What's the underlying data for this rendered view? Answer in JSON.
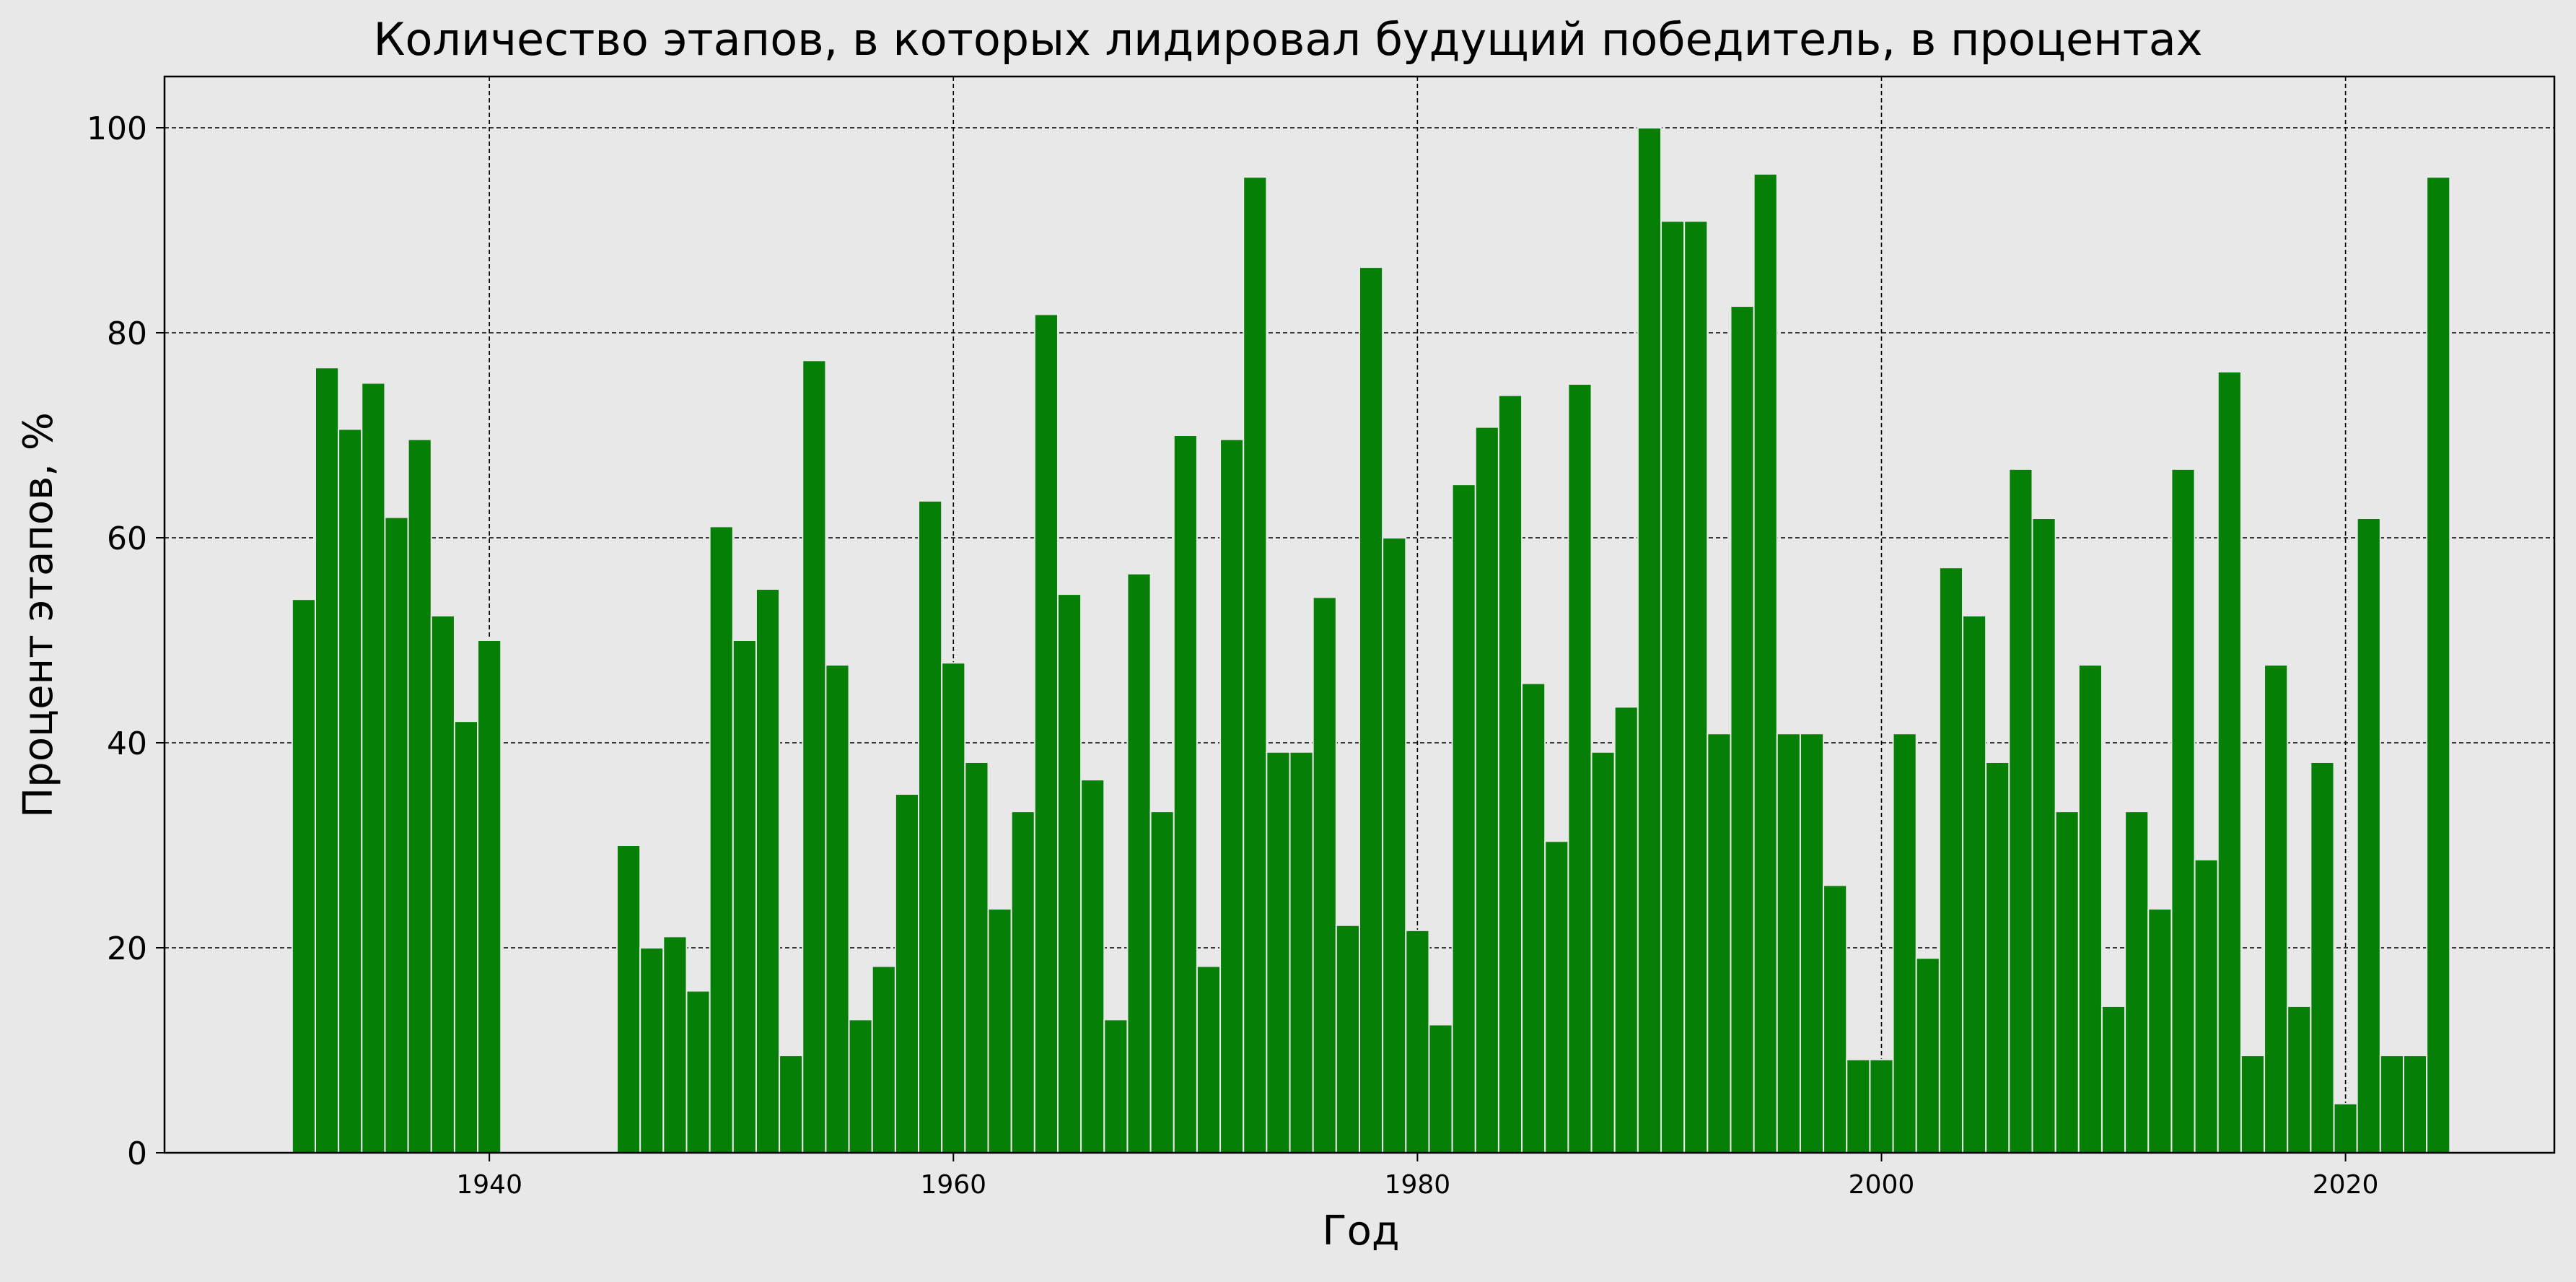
{
  "colors": {
    "background": "#e8e8e8",
    "plot_background": "#e8e8e8",
    "bar_fill": "#067f06",
    "bar_edge": "#e8e8e8",
    "grid": "#000000",
    "axis": "#000000"
  },
  "chart_data": {
    "type": "bar",
    "title": "Количество этапов, в которых лидировал будущий победитель, в процентах",
    "xlabel": "Год",
    "ylabel": "Процент этапов, %",
    "xlim": [
      1926,
      2029
    ],
    "ylim": [
      0,
      105
    ],
    "xticks": [
      1940,
      1960,
      1980,
      2000,
      2020
    ],
    "yticks": [
      0,
      20,
      40,
      60,
      80,
      100
    ],
    "grid": true,
    "grid_style": "dashed",
    "bar_width": 1.0,
    "x": [
      1932,
      1933,
      1934,
      1935,
      1936,
      1937,
      1938,
      1939,
      1940,
      1946,
      1947,
      1948,
      1949,
      1950,
      1951,
      1952,
      1953,
      1954,
      1955,
      1956,
      1957,
      1958,
      1959,
      1960,
      1961,
      1962,
      1963,
      1964,
      1965,
      1966,
      1967,
      1968,
      1969,
      1970,
      1971,
      1972,
      1973,
      1974,
      1975,
      1976,
      1977,
      1978,
      1979,
      1980,
      1981,
      1982,
      1983,
      1984,
      1985,
      1986,
      1987,
      1988,
      1989,
      1990,
      1991,
      1992,
      1993,
      1994,
      1995,
      1996,
      1997,
      1998,
      1999,
      2000,
      2001,
      2002,
      2003,
      2004,
      2005,
      2006,
      2007,
      2008,
      2009,
      2010,
      2011,
      2012,
      2013,
      2014,
      2015,
      2016,
      2017,
      2018,
      2019,
      2020,
      2021,
      2022,
      2023,
      2024
    ],
    "values": [
      54.0,
      76.6,
      70.6,
      75.1,
      62.0,
      69.6,
      52.4,
      42.1,
      50.0,
      30.0,
      20.0,
      21.1,
      15.8,
      61.1,
      50.0,
      55.0,
      9.5,
      77.3,
      47.6,
      13.0,
      18.2,
      35.0,
      63.6,
      47.8,
      38.1,
      23.8,
      33.3,
      81.8,
      54.5,
      36.4,
      13.0,
      56.5,
      33.3,
      70.0,
      18.2,
      69.6,
      95.2,
      39.1,
      39.1,
      54.2,
      22.2,
      86.4,
      60.0,
      21.7,
      12.5,
      65.2,
      70.8,
      73.9,
      45.8,
      30.4,
      75.0,
      39.1,
      43.5,
      100.0,
      90.9,
      90.9,
      40.9,
      82.6,
      95.5,
      40.9,
      40.9,
      26.1,
      9.1,
      9.1,
      40.9,
      19.0,
      57.1,
      52.4,
      38.1,
      66.7,
      61.9,
      33.3,
      47.6,
      14.3,
      33.3,
      23.8,
      66.7,
      28.6,
      76.2,
      9.5,
      47.6,
      14.3,
      38.1,
      4.8,
      61.9,
      9.5,
      9.5,
      95.2
    ]
  }
}
